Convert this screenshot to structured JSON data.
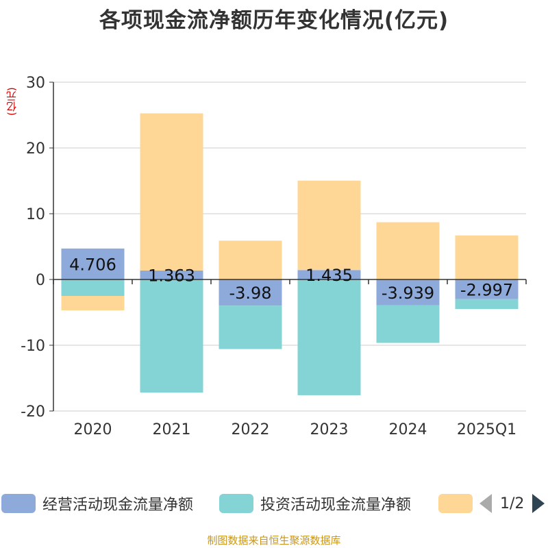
{
  "title": "各项现金流净额历年变化情况(亿元)",
  "unit_label": "(亿元)",
  "source": "制图数据来自恒生聚源数据库",
  "legend": {
    "items": [
      {
        "label": "经营活动现金流量净额",
        "color": "#8eaadb"
      },
      {
        "label": "投资活动现金流量净额",
        "color": "#85d4d5"
      },
      {
        "label": "",
        "color": "#fed796"
      }
    ],
    "page": "1/2"
  },
  "chart_data": {
    "type": "bar",
    "stacked": true,
    "categories": [
      "2020",
      "2021",
      "2022",
      "2023",
      "2024",
      "2025Q1"
    ],
    "ylim": [
      -20,
      30
    ],
    "yticks": [
      -20,
      -10,
      0,
      10,
      20,
      30
    ],
    "grid": true,
    "series": [
      {
        "name": "经营活动现金流量净额",
        "color": "#8eaadb",
        "values": [
          4.706,
          1.363,
          -3.98,
          1.435,
          -3.939,
          -2.997
        ],
        "labels": [
          "4.706",
          "1.363",
          "-3.98",
          "1.435",
          "-3.939",
          "-2.997"
        ]
      },
      {
        "name": "投资活动现金流量净额",
        "color": "#85d4d5",
        "values": [
          -2.5,
          -17.2,
          -6.6,
          -17.6,
          -5.7,
          -1.5
        ]
      },
      {
        "color": "#fed796",
        "values": [
          -2.2,
          23.9,
          5.9,
          13.6,
          8.7,
          6.7
        ]
      }
    ]
  }
}
